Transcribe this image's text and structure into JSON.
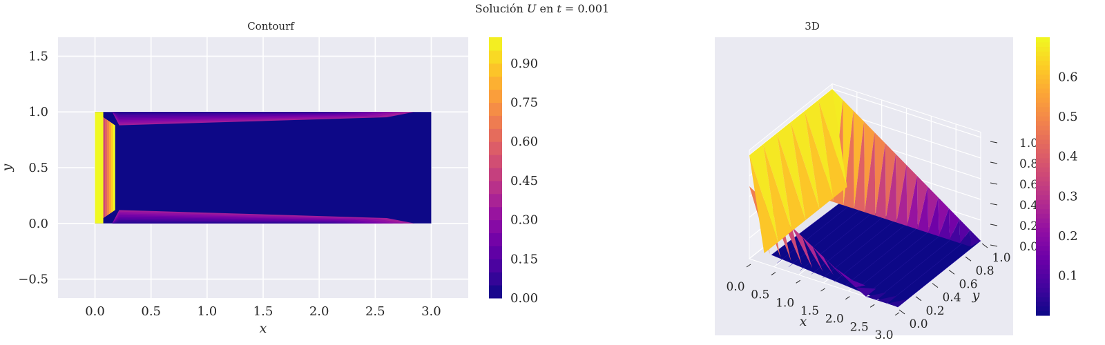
{
  "figure": {
    "suptitle_prefix": "Solución ",
    "suptitle_var": "U",
    "suptitle_mid": " en ",
    "suptitle_t": "t",
    "suptitle_suffix": " =  0.001"
  },
  "colors": {
    "axes_bg": "#eaeaf2",
    "grid": "#ffffff",
    "text": "#262626",
    "colormap": "plasma",
    "plasma_stops": [
      "#0d0887",
      "#41049d",
      "#6a00a8",
      "#8f0da4",
      "#b12a90",
      "#cc4778",
      "#e16462",
      "#f2844b",
      "#fca636",
      "#fcce25",
      "#f0f921"
    ]
  },
  "chart_data": [
    {
      "type": "contourf",
      "title": "Contourf",
      "xlabel": "x",
      "ylabel": "y",
      "xlim": [
        -0.33,
        3.33
      ],
      "ylim": [
        -0.67,
        1.67
      ],
      "x_ticks": [
        0.0,
        0.5,
        1.0,
        1.5,
        2.0,
        2.5,
        3.0
      ],
      "x_tick_labels": [
        "0.0",
        "0.5",
        "1.0",
        "1.5",
        "2.0",
        "2.5",
        "3.0"
      ],
      "y_ticks": [
        -0.5,
        0.0,
        0.5,
        1.0,
        1.5
      ],
      "y_tick_labels": [
        "−0.5",
        "0.0",
        "0.5",
        "1.0",
        "1.5"
      ],
      "domain": {
        "x": [
          0.0,
          3.0
        ],
        "y": [
          0.0,
          1.0
        ]
      },
      "boundary_values": {
        "left": 1.0,
        "top": 0.0,
        "bottom": 0.0,
        "right": 0.0
      },
      "interior_value": 0.0,
      "grid": true,
      "colorbar": {
        "range": [
          0.0,
          1.0
        ],
        "ticks": [
          0.0,
          0.15,
          0.3,
          0.45,
          0.6,
          0.75,
          0.9
        ],
        "tick_labels": [
          "0.00",
          "0.15",
          "0.30",
          "0.45",
          "0.60",
          "0.75",
          "0.90"
        ]
      }
    },
    {
      "type": "surface3d",
      "title": "3D",
      "xlabel": "x",
      "ylabel": "y",
      "x_tick_labels": [
        "0.0",
        "0.5",
        "1.0",
        "1.5",
        "2.0",
        "2.5",
        "3.0"
      ],
      "y_tick_labels": [
        "0.0",
        "0.2",
        "0.4",
        "0.6",
        "0.8",
        "1.0"
      ],
      "z_tick_labels": [
        "0.0",
        "0.2",
        "0.4",
        "0.6",
        "0.8",
        "1.0"
      ],
      "xlim": [
        0.0,
        3.0
      ],
      "ylim": [
        0.0,
        1.0
      ],
      "zlim": [
        0.0,
        1.0
      ],
      "colorbar": {
        "range": [
          0.0,
          0.7
        ],
        "tick_labels": [
          "0.1",
          "0.2",
          "0.3",
          "0.4",
          "0.5",
          "0.6"
        ]
      }
    }
  ]
}
